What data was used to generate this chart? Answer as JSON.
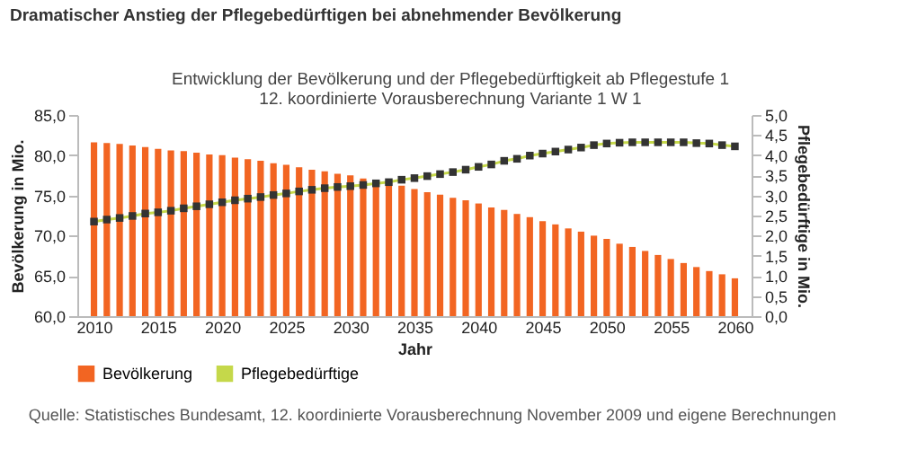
{
  "chart_data": {
    "type": "bar",
    "title": "Dramatischer Anstieg der Pflegebedürftigen bei abnehmender Bevölkerung",
    "subtitle": "Entwicklung der Bevölkerung und der Pflegebedürftigkeit ab Pflegestufe 1\n12. koordinierte Vorausberechnung Variante 1 W 1",
    "xlabel": "Jahr",
    "ylabel": "Bevölkerung in Mio.",
    "y2label": "Pflegebedürftige in Mio.",
    "x": [
      2010,
      2011,
      2012,
      2013,
      2014,
      2015,
      2016,
      2017,
      2018,
      2019,
      2020,
      2021,
      2022,
      2023,
      2024,
      2025,
      2026,
      2027,
      2028,
      2029,
      2030,
      2031,
      2032,
      2033,
      2034,
      2035,
      2036,
      2037,
      2038,
      2039,
      2040,
      2041,
      2042,
      2043,
      2044,
      2045,
      2046,
      2047,
      2048,
      2049,
      2050,
      2051,
      2052,
      2053,
      2054,
      2055,
      2056,
      2057,
      2058,
      2059,
      2060
    ],
    "series": [
      {
        "name": "Bevölkerung",
        "color": "#f26522",
        "values": [
          81.6,
          81.5,
          81.4,
          81.2,
          81.0,
          80.8,
          80.6,
          80.5,
          80.3,
          80.1,
          80.0,
          79.7,
          79.5,
          79.3,
          79.0,
          78.8,
          78.5,
          78.2,
          78.0,
          77.7,
          77.5,
          77.1,
          76.8,
          76.5,
          76.2,
          75.8,
          75.4,
          75.1,
          74.7,
          74.4,
          74.0,
          73.5,
          73.2,
          72.7,
          72.3,
          71.8,
          71.4,
          70.9,
          70.5,
          70.0,
          69.6,
          69.0,
          68.6,
          68.1,
          67.6,
          67.1,
          66.6,
          66.1,
          65.6,
          65.2,
          64.7
        ]
      },
      {
        "name": "Pflegebedürftige",
        "type": "line",
        "axis": "y2",
        "color": "#c5d84a",
        "marker": "square",
        "values": [
          2.35,
          2.4,
          2.44,
          2.49,
          2.55,
          2.58,
          2.62,
          2.68,
          2.73,
          2.78,
          2.83,
          2.88,
          2.92,
          2.96,
          3.01,
          3.05,
          3.1,
          3.14,
          3.18,
          3.21,
          3.23,
          3.26,
          3.3,
          3.33,
          3.39,
          3.43,
          3.48,
          3.53,
          3.58,
          3.64,
          3.71,
          3.77,
          3.86,
          3.91,
          3.99,
          4.04,
          4.09,
          4.14,
          4.19,
          4.25,
          4.29,
          4.31,
          4.32,
          4.32,
          4.32,
          4.32,
          4.32,
          4.3,
          4.29,
          4.25,
          4.22
        ]
      }
    ],
    "xlim": [
      2009.4,
      2060.6
    ],
    "xticks": [
      2010,
      2015,
      2020,
      2025,
      2030,
      2035,
      2040,
      2045,
      2050,
      2055,
      2060
    ],
    "ylim": [
      60,
      85
    ],
    "yticks": [
      {
        "value": 60,
        "label": "60,0"
      },
      {
        "value": 65,
        "label": "65,0"
      },
      {
        "value": 70,
        "label": "70,0"
      },
      {
        "value": 75,
        "label": "75,0"
      },
      {
        "value": 80,
        "label": "80,0"
      },
      {
        "value": 85,
        "label": "85,0"
      }
    ],
    "y2lim": [
      0,
      5
    ],
    "y2ticks": [
      {
        "value": 0,
        "label": "0,0"
      },
      {
        "value": 0.5,
        "label": "0,5"
      },
      {
        "value": 1,
        "label": "1,0"
      },
      {
        "value": 1.5,
        "label": "1,5"
      },
      {
        "value": 2,
        "label": "2,0"
      },
      {
        "value": 2.5,
        "label": "2,5"
      },
      {
        "value": 3,
        "label": "3,0"
      },
      {
        "value": 3.5,
        "label": "3,5"
      },
      {
        "value": 4,
        "label": "4,0"
      },
      {
        "value": 4.5,
        "label": "4,5"
      },
      {
        "value": 5,
        "label": "5,0"
      }
    ],
    "grid": false,
    "legend": "bottom",
    "annotations": [
      "Quelle: Statistisches Bundesamt, 12. koordinierte Vorausberechnung November 2009 und eigene Berechnungen"
    ]
  }
}
